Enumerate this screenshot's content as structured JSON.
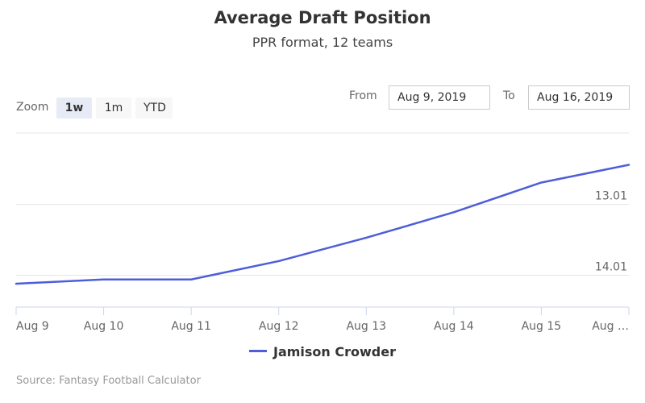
{
  "header": {
    "title": "Average Draft Position",
    "subtitle": "PPR format, 12 teams"
  },
  "zoom": {
    "label": "Zoom",
    "buttons": [
      "1w",
      "1m",
      "YTD"
    ],
    "active": "1w"
  },
  "range": {
    "from_label": "From",
    "from_value": "Aug 9, 2019",
    "to_label": "To",
    "to_value": "Aug 16, 2019"
  },
  "legend": {
    "series_name": "Jamison Crowder"
  },
  "credits": "Source: Fantasy Football Calculator",
  "colors": {
    "series": "#4e5ed9",
    "grid": "#e6e6e6",
    "axis": "#ccd6eb"
  },
  "chart_data": {
    "type": "line",
    "title": "Average Draft Position",
    "subtitle": "PPR format, 12 teams",
    "x": [
      "Aug 9",
      "Aug 10",
      "Aug 11",
      "Aug 12",
      "Aug 13",
      "Aug 14",
      "Aug 15",
      "Aug …"
    ],
    "series": [
      {
        "name": "Jamison Crowder",
        "values": [
          14.13,
          14.07,
          14.07,
          13.81,
          13.48,
          13.12,
          12.7,
          12.45
        ]
      }
    ],
    "y_ticks": [
      13.01,
      14.01
    ],
    "y_tick_labels": [
      "13.01",
      "14.01"
    ],
    "y_reversed": true,
    "ylim": [
      12.0,
      14.46
    ],
    "grid": true,
    "legend": "bottom-center"
  }
}
